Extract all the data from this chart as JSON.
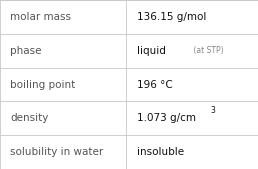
{
  "rows": [
    {
      "label": "molar mass",
      "value": "136.15 g/mol",
      "type": "plain"
    },
    {
      "label": "phase",
      "value": "liquid",
      "type": "phase",
      "suffix": " (at STP)"
    },
    {
      "label": "boiling point",
      "value": "196 °C",
      "type": "plain"
    },
    {
      "label": "density",
      "value": "1.073 g/cm",
      "type": "super",
      "super": "3"
    },
    {
      "label": "solubility in water",
      "value": "insoluble",
      "type": "plain"
    }
  ],
  "col_split": 0.49,
  "background": "#ffffff",
  "grid_color": "#c8c8c8",
  "label_color": "#555555",
  "value_color": "#111111",
  "suffix_color": "#888888",
  "label_fontsize": 7.5,
  "value_fontsize": 7.5,
  "suffix_fontsize": 5.5
}
